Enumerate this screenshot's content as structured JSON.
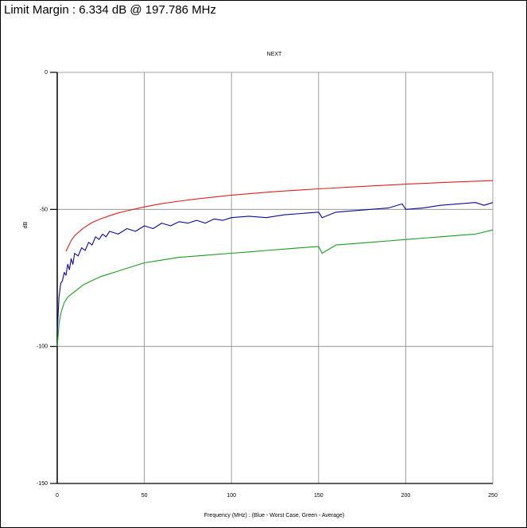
{
  "header": {
    "limit_margin": "Limit Margin : 6.334 dB @ 197.786 MHz"
  },
  "chart_data": {
    "type": "line",
    "title": "NEXT",
    "xlabel": "Frequency (MHz) : (Blue - Worst Case, Green - Average)",
    "ylabel": "dB",
    "xlim": [
      0,
      250
    ],
    "ylim": [
      -150,
      0
    ],
    "x_ticks": [
      0,
      50,
      100,
      150,
      200,
      250
    ],
    "y_ticks": [
      0,
      -50,
      -100,
      -150
    ],
    "grid": true,
    "colors": {
      "limit": "#e0201a",
      "worst": "#0b0aa0",
      "average": "#1c9c22"
    },
    "series": [
      {
        "key": "limit",
        "x": [
          5,
          8,
          10,
          15,
          20,
          25,
          30,
          35,
          40,
          50,
          60,
          70,
          80,
          90,
          100,
          125,
          150,
          175,
          200,
          225,
          250
        ],
        "y": [
          -65.3,
          -61.4,
          -59.6,
          -56.8,
          -54.8,
          -53.4,
          -52.3,
          -51.3,
          -50.5,
          -49.1,
          -47.9,
          -47.0,
          -46.2,
          -45.5,
          -44.8,
          -43.5,
          -42.5,
          -41.6,
          -40.8,
          -40.1,
          -39.5
        ]
      },
      {
        "key": "worst",
        "x": [
          0,
          1,
          2,
          3,
          4,
          5,
          6,
          7,
          8,
          9,
          10,
          12,
          14,
          16,
          18,
          20,
          22,
          24,
          26,
          28,
          30,
          35,
          40,
          45,
          50,
          55,
          60,
          65,
          70,
          75,
          80,
          85,
          90,
          95,
          100,
          110,
          120,
          130,
          140,
          150,
          152,
          160,
          170,
          180,
          190,
          198,
          200,
          210,
          220,
          230,
          240,
          245,
          250
        ],
        "y": [
          -95,
          -82,
          -77,
          -76,
          -73,
          -74,
          -70,
          -72,
          -68,
          -70,
          -66,
          -67,
          -64,
          -65,
          -62,
          -63,
          -60,
          -61,
          -59,
          -60,
          -58,
          -59,
          -57,
          -58,
          -56,
          -57,
          -55,
          -56,
          -54.5,
          -55,
          -54,
          -55,
          -53.5,
          -54,
          -53,
          -52.5,
          -53,
          -52,
          -51.5,
          -51,
          -53,
          -51,
          -50.5,
          -50,
          -49.5,
          -48,
          -50,
          -49.5,
          -48.5,
          -48,
          -47.5,
          -48.5,
          -47.5
        ]
      },
      {
        "key": "average",
        "x": [
          0,
          1,
          2,
          3,
          4,
          5,
          6,
          8,
          10,
          12,
          15,
          20,
          25,
          30,
          35,
          40,
          45,
          50,
          60,
          70,
          80,
          90,
          100,
          110,
          120,
          130,
          140,
          150,
          152,
          160,
          170,
          180,
          190,
          200,
          210,
          220,
          230,
          240,
          250
        ],
        "y": [
          -100,
          -92,
          -88,
          -86,
          -84,
          -83,
          -82,
          -81,
          -80,
          -79,
          -77.5,
          -76,
          -74.5,
          -73.5,
          -72.5,
          -71.5,
          -70.5,
          -69.5,
          -68.5,
          -67.5,
          -67,
          -66.5,
          -66,
          -65.5,
          -65,
          -64.5,
          -64,
          -63.5,
          -66,
          -63,
          -62.5,
          -62,
          -61.5,
          -61,
          -60.5,
          -60,
          -59.5,
          -59,
          -57.5
        ]
      }
    ]
  }
}
